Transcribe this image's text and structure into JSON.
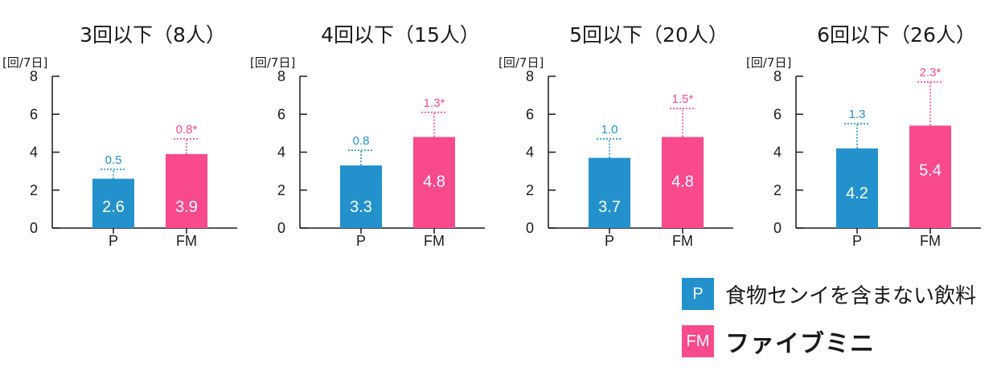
{
  "colors": {
    "P": "#2291cc",
    "FM": "#f84a8c",
    "axis": "#1a1a1a"
  },
  "legend": [
    {
      "key": "P",
      "abbr": "P",
      "label": "食物センイを含まない飲料"
    },
    {
      "key": "FM",
      "abbr": "FM",
      "label": "ファイブミニ"
    }
  ],
  "chart_data": [
    {
      "type": "bar",
      "title": "3回以下（8人）",
      "ylabel": "[回/7日]",
      "ylim": [
        0,
        8
      ],
      "yticks": [
        0,
        2,
        4,
        6,
        8
      ],
      "categories": [
        "P",
        "FM"
      ],
      "values": [
        2.6,
        3.9
      ],
      "value_labels": [
        "2.6",
        "3.9"
      ],
      "errors": [
        0.5,
        0.8
      ],
      "error_labels": [
        "0.5",
        "0.8*"
      ]
    },
    {
      "type": "bar",
      "title": "4回以下（15人）",
      "ylabel": "[回/7日]",
      "ylim": [
        0,
        8
      ],
      "yticks": [
        0,
        2,
        4,
        6,
        8
      ],
      "categories": [
        "P",
        "FM"
      ],
      "values": [
        3.3,
        4.8
      ],
      "value_labels": [
        "3.3",
        "4.8"
      ],
      "errors": [
        0.8,
        1.3
      ],
      "error_labels": [
        "0.8",
        "1.3*"
      ]
    },
    {
      "type": "bar",
      "title": "5回以下（20人）",
      "ylabel": "[回/7日]",
      "ylim": [
        0,
        8
      ],
      "yticks": [
        0,
        2,
        4,
        6,
        8
      ],
      "categories": [
        "P",
        "FM"
      ],
      "values": [
        3.7,
        4.8
      ],
      "value_labels": [
        "3.7",
        "4.8"
      ],
      "errors": [
        1.0,
        1.5
      ],
      "error_labels": [
        "1.0",
        "1.5*"
      ]
    },
    {
      "type": "bar",
      "title": "6回以下（26人）",
      "ylabel": "[回/7日]",
      "ylim": [
        0,
        8
      ],
      "yticks": [
        0,
        2,
        4,
        6,
        8
      ],
      "categories": [
        "P",
        "FM"
      ],
      "values": [
        4.2,
        5.4
      ],
      "value_labels": [
        "4.2",
        "5.4"
      ],
      "errors": [
        1.3,
        2.3
      ],
      "error_labels": [
        "1.3",
        "2.3*"
      ]
    }
  ]
}
